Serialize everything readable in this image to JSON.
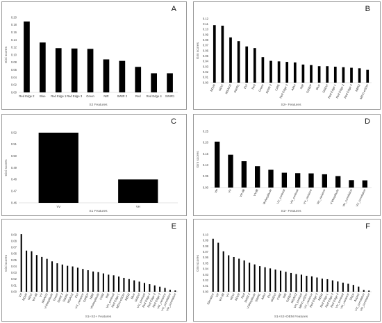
{
  "chart_data": [
    {
      "panel": "A",
      "type": "bar",
      "ylabel": "Gini scores",
      "xlabel": "S2 Features",
      "ylim": [
        0,
        0.2
      ],
      "yticks": [
        "0.00",
        "0.02",
        "0.04",
        "0.06",
        "0.08",
        "0.10",
        "0.12",
        "0.14",
        "0.16",
        "0.18",
        "0.20"
      ],
      "categories": [
        "Red Edge 2",
        "Blue",
        "Red Edge 1",
        "Red Edge 3",
        "Green",
        "NIR",
        "SWIR 2",
        "Red",
        "Red Edge 4",
        "SWIR1"
      ],
      "values": [
        0.189,
        0.133,
        0.118,
        0.117,
        0.116,
        0.088,
        0.084,
        0.068,
        0.051,
        0.051
      ]
    },
    {
      "panel": "B",
      "type": "bar",
      "ylabel": "Gini scores",
      "xlabel": "S2+ Features",
      "ylim": [
        0,
        0.12
      ],
      "yticks": [
        "0.00",
        "0.01",
        "0.02",
        "0.03",
        "0.04",
        "0.05",
        "0.06",
        "0.07",
        "0.08",
        "0.09",
        "0.10",
        "0.11",
        "0.12"
      ],
      "categories": [
        "NDWI",
        "NDVI",
        "MSAVI2",
        "SWIR1",
        "EVI",
        "Red",
        "Green",
        "SWIR 2",
        "CIRE",
        "Red Edge 3",
        "ARVI",
        "NIR",
        "S2REP",
        "Blue",
        "GNDVI",
        "Red Edge 1",
        "Red Edge 2",
        "Red Edge 4",
        "NBR2",
        "MDVI-eSDm"
      ],
      "values": [
        0.108,
        0.107,
        0.085,
        0.078,
        0.068,
        0.065,
        0.048,
        0.041,
        0.04,
        0.039,
        0.038,
        0.034,
        0.033,
        0.031,
        0.031,
        0.03,
        0.029,
        0.028,
        0.027,
        0.024
      ]
    },
    {
      "panel": "C",
      "type": "bar",
      "ylabel": "Gini scores",
      "xlabel": "S1 Features",
      "ylim": [
        0.46,
        0.52
      ],
      "yticks": [
        "0.46",
        "0.47",
        "0.48",
        "0.49",
        "0.50",
        "0.51",
        "0.52"
      ],
      "categories": [
        "VV",
        "VH"
      ],
      "values": [
        0.52,
        0.48
      ]
    },
    {
      "panel": "D",
      "type": "bar",
      "ylabel": "Gini scores",
      "xlabel": "S1+ Features",
      "ylim": [
        0,
        0.25
      ],
      "yticks": [
        "0.00",
        "0.05",
        "0.10",
        "0.15",
        "0.20",
        "0.25"
      ],
      "categories": [
        "VH",
        "VV",
        "VH-dB",
        "VVdB",
        "VHAmplitude",
        "VV_contrast",
        "VH_contrast",
        "VV_variance",
        "VH_variance",
        "VVAmplitude",
        "VH_correlation",
        "VV_correlation"
      ],
      "values": [
        0.204,
        0.146,
        0.117,
        0.095,
        0.079,
        0.066,
        0.064,
        0.063,
        0.059,
        0.051,
        0.033,
        0.032
      ]
    },
    {
      "panel": "E",
      "type": "bar",
      "ylabel": "Gini scores",
      "xlabel": "S1+S2+ Features",
      "ylim": [
        0,
        0.09
      ],
      "yticks": [
        "0.00",
        "0.01",
        "0.02",
        "0.03",
        "0.04",
        "0.05",
        "0.06",
        "0.07",
        "0.08",
        "0.09"
      ],
      "categories": [
        "VH",
        "NDWI",
        "NDVI",
        "VH-dB",
        "VV",
        "MSAVI2",
        "VVAmplitude",
        "Green",
        "SWIR 2",
        "SWIR1",
        "MSAVI2",
        "EVI",
        "VV_variance",
        "S2REP",
        "NBR",
        "VHAmplitude",
        "CIRE",
        "NIR",
        "VH_contrast",
        "Red Edge 1",
        "MDVI-eSDm",
        "NBR2",
        "Blue",
        "GNDVI",
        "VV_contrast",
        "Red Edge 4",
        "Red Edge 3",
        "Red Edge 2",
        "VH_variance",
        "VV_correlation",
        "VH_correlation"
      ],
      "values": [
        0.091,
        0.065,
        0.064,
        0.058,
        0.055,
        0.052,
        0.048,
        0.045,
        0.043,
        0.041,
        0.04,
        0.038,
        0.036,
        0.034,
        0.032,
        0.031,
        0.029,
        0.027,
        0.026,
        0.024,
        0.022,
        0.02,
        0.018,
        0.016,
        0.014,
        0.012,
        0.01,
        0.008,
        0.006,
        0.003,
        0.002
      ]
    },
    {
      "panel": "F",
      "type": "bar",
      "ylabel": "Gini scores",
      "xlabel": "S1+S2+DEM Features",
      "ylim": [
        0,
        0.1
      ],
      "yticks": [
        "0.00",
        "0.01",
        "0.02",
        "0.03",
        "0.04",
        "0.05",
        "0.06",
        "0.07",
        "0.08",
        "0.09",
        "0.10"
      ],
      "categories": [
        "Elevation",
        "VH",
        "VH-dB",
        "VV",
        "NDVI",
        "NDWI",
        "Red",
        "SWIR 2",
        "VVAmplitude",
        "SWIR1",
        "ARVI",
        "EVI",
        "GNDVI",
        "CIRE",
        "NIR",
        "S2REP",
        "MSAVI2",
        "VH_contrast",
        "MDVI-eSDm",
        "VV_variance",
        "Red Edge 3",
        "NBR2",
        "Red Edge 1",
        "Red Edge 2",
        "Red Edge 4",
        "VV_contrast",
        "VH_variance",
        "Slope",
        "Aspect",
        "VV_correlation",
        "VH_correlation"
      ],
      "values": [
        0.093,
        0.086,
        0.071,
        0.064,
        0.061,
        0.058,
        0.055,
        0.051,
        0.048,
        0.045,
        0.043,
        0.041,
        0.039,
        0.037,
        0.035,
        0.033,
        0.031,
        0.03,
        0.028,
        0.027,
        0.025,
        0.023,
        0.022,
        0.02,
        0.018,
        0.016,
        0.014,
        0.012,
        0.009,
        0.003,
        0.002
      ]
    }
  ]
}
